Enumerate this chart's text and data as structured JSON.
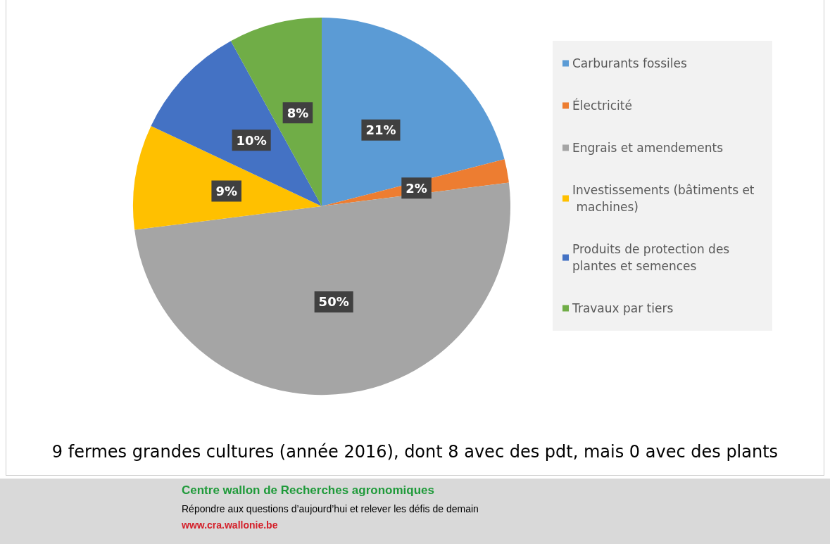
{
  "chart_data": {
    "type": "pie",
    "categories": [
      "Carburants fossiles",
      "Électricité",
      "Engrais et amendements",
      "Investissements (bâtiments et machines)",
      "Produits de protection des plantes et semences",
      "Travaux par tiers"
    ],
    "values": [
      21,
      2,
      50,
      9,
      10,
      8
    ],
    "colors": [
      "#5b9bd5",
      "#ed7d31",
      "#a5a5a5",
      "#ffc000",
      "#4472c4",
      "#70ad47"
    ],
    "value_labels": [
      "21%",
      "2%",
      "50%",
      "9%",
      "10%",
      "8%"
    ],
    "legend": "right",
    "annotations": [
      "9 fermes grandes cultures (année 2016), dont 8 avec des pdt, mais 0 avec des plants",
      "Centre wallon de Recherches agronomiques",
      "Répondre aux questions d’aujourd’hui et relever les défis de demain",
      "www.cra.wallonie.be"
    ]
  }
}
